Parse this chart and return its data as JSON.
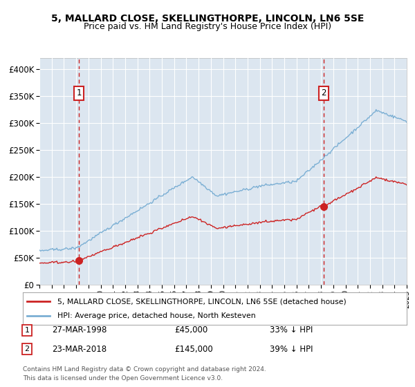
{
  "title": "5, MALLARD CLOSE, SKELLINGTHORPE, LINCOLN, LN6 5SE",
  "subtitle": "Price paid vs. HM Land Registry's House Price Index (HPI)",
  "ylim": [
    0,
    420000
  ],
  "yticks": [
    0,
    50000,
    100000,
    150000,
    200000,
    250000,
    300000,
    350000,
    400000
  ],
  "ytick_labels": [
    "£0",
    "£50K",
    "£100K",
    "£150K",
    "£200K",
    "£250K",
    "£300K",
    "£350K",
    "£400K"
  ],
  "bg_color": "#dce6f0",
  "grid_color": "#ffffff",
  "red_color": "#cc2222",
  "blue_color": "#7bafd4",
  "sale1_year": 1998.23,
  "sale1_price": 45000,
  "sale1_label": "1",
  "sale1_date": "27-MAR-1998",
  "sale1_pct": "33% ↓ HPI",
  "sale2_year": 2018.23,
  "sale2_price": 145000,
  "sale2_label": "2",
  "sale2_date": "23-MAR-2018",
  "sale2_pct": "39% ↓ HPI",
  "legend_line1": "5, MALLARD CLOSE, SKELLINGTHORPE, LINCOLN, LN6 5SE (detached house)",
  "legend_line2": "HPI: Average price, detached house, North Kesteven",
  "footnote1": "Contains HM Land Registry data © Crown copyright and database right 2024.",
  "footnote2": "This data is licensed under the Open Government Licence v3.0.",
  "xmin": 1995,
  "xmax": 2025
}
